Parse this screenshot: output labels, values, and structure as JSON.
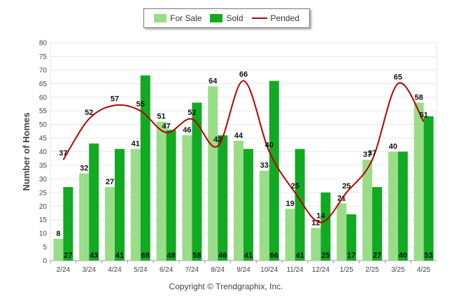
{
  "chart_data": {
    "type": "bar",
    "categories": [
      "2/24",
      "3/24",
      "4/24",
      "5/24",
      "6/24",
      "7/24",
      "8/24",
      "9/24",
      "10/24",
      "11/24",
      "12/24",
      "1/25",
      "2/25",
      "3/25",
      "4/25"
    ],
    "series": [
      {
        "name": "For Sale",
        "type": "bar",
        "color": "#99dd88",
        "values": [
          8,
          32,
          27,
          41,
          51,
          46,
          64,
          44,
          33,
          19,
          12,
          21,
          37,
          40,
          58
        ]
      },
      {
        "name": "Sold",
        "type": "bar",
        "color": "#11aa22",
        "values": [
          27,
          43,
          41,
          68,
          48,
          58,
          46,
          41,
          66,
          41,
          25,
          17,
          27,
          40,
          53
        ]
      },
      {
        "name": "Pended",
        "type": "line",
        "color": "#bb0000",
        "values": [
          37,
          52,
          57,
          55,
          47,
          52,
          42,
          66,
          40,
          25,
          14,
          25,
          37,
          65,
          51
        ]
      }
    ],
    "ylabel": "Number of Homes",
    "xlabel": "",
    "ylim": [
      0,
      80
    ],
    "yticks": [
      0,
      5,
      10,
      15,
      20,
      25,
      30,
      35,
      40,
      45,
      50,
      55,
      60,
      65,
      70,
      75,
      80
    ],
    "grid": true,
    "legend_position": "top-center"
  },
  "footer": {
    "copyright": "Copyright © Trendgraphix, Inc."
  }
}
